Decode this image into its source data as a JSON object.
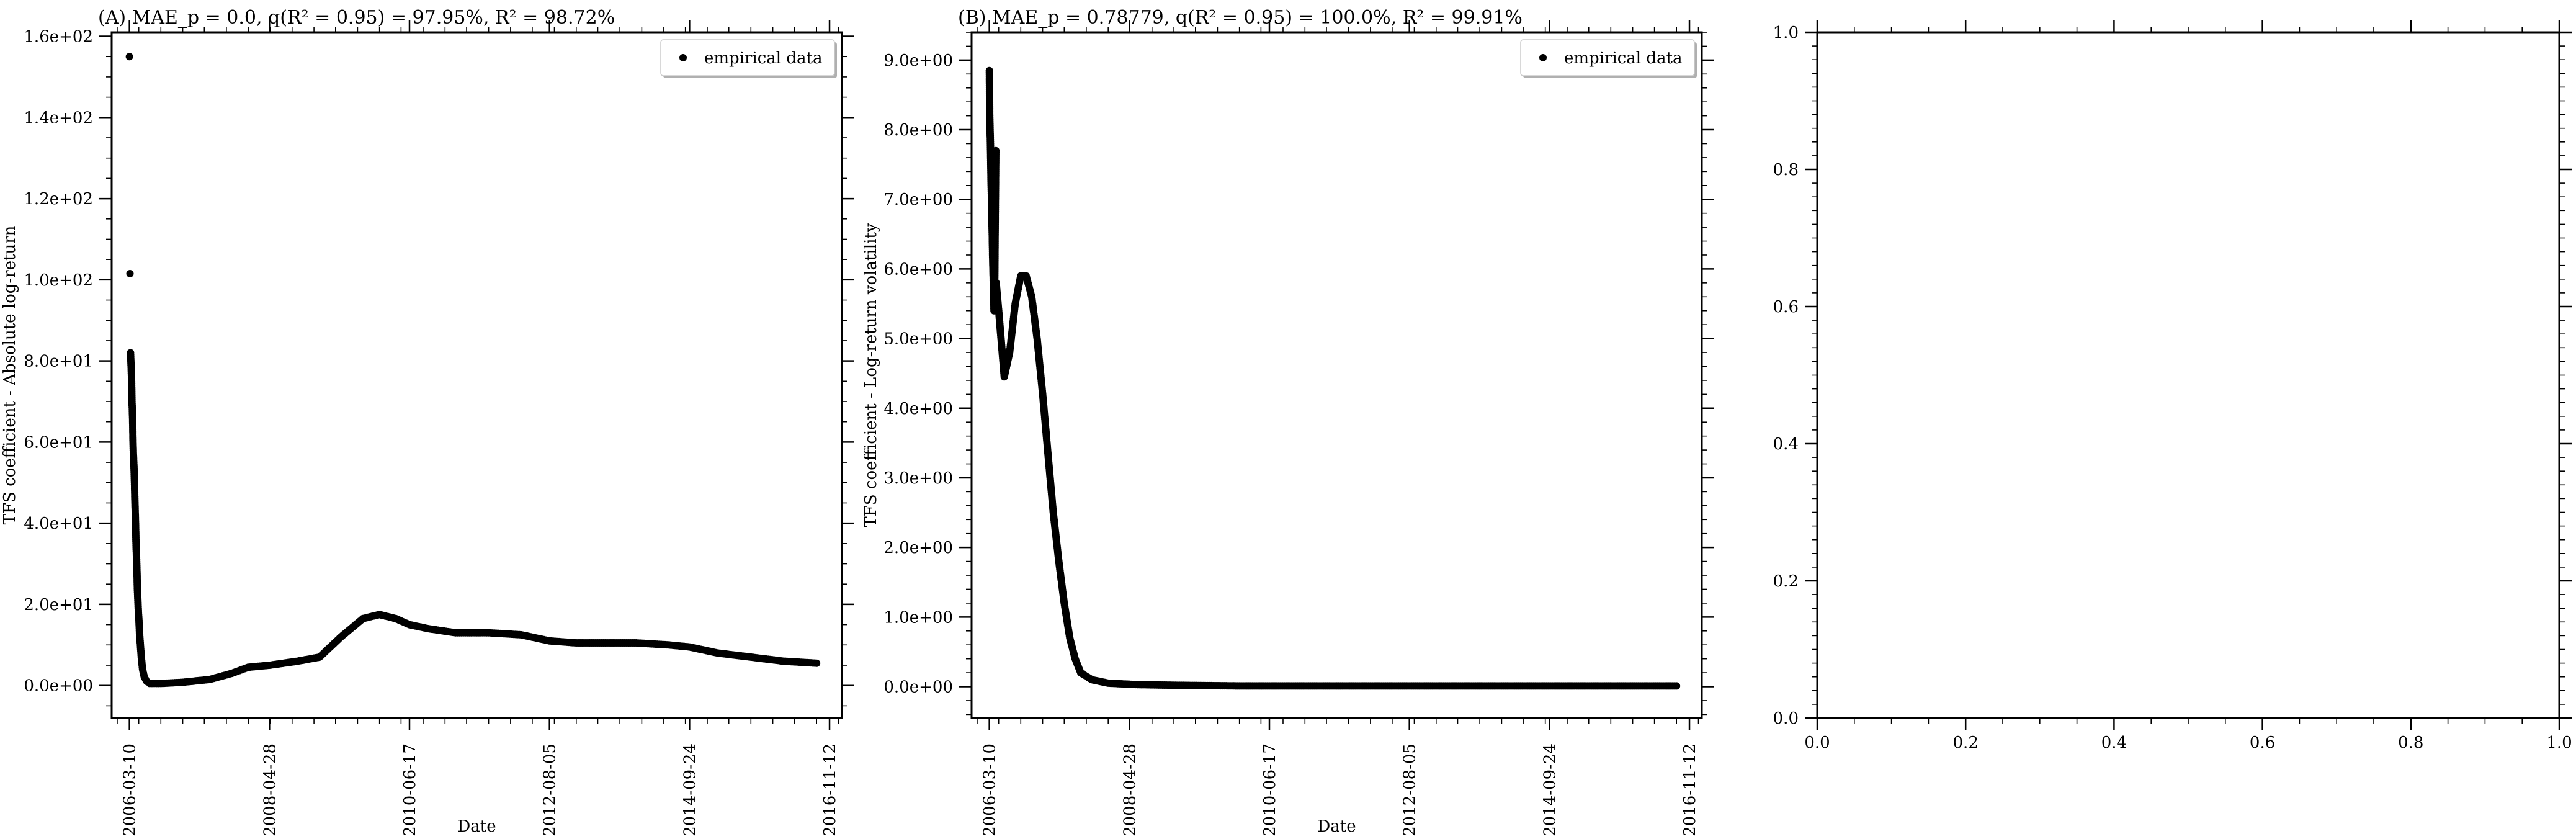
{
  "chart_data": [
    {
      "type": "scatter",
      "title": "(A) MAE_p = 0.0, q(R² = 0.95) = 97.95%, R² = 98.72%",
      "xlabel": "Date",
      "ylabel": "TFS coefficient - Absolute log-return",
      "x_ticks": [
        "2006-03-10",
        "2008-04-28",
        "2010-06-17",
        "2012-08-05",
        "2014-09-24",
        "2016-11-12"
      ],
      "y_ticks": [
        "0.0e+00",
        "2.0e+01",
        "4.0e+01",
        "6.0e+01",
        "8.0e+01",
        "1.0e+02",
        "1.2e+02",
        "1.4e+02",
        "1.6e+02"
      ],
      "xlim": [
        "2005-12-01",
        "2017-01-20"
      ],
      "ylim": [
        -8,
        161
      ],
      "legend": {
        "label": "empirical data",
        "placement": "top-right"
      },
      "series": [
        {
          "name": "empirical data",
          "marker": "dot",
          "points": [
            [
              "2006-03-10",
              155
            ],
            [
              "2006-03-13",
              101.5
            ],
            [
              "2006-03-16",
              82
            ],
            [
              "2006-03-18",
              80
            ],
            [
              "2006-03-20",
              78
            ],
            [
              "2006-03-22",
              75
            ],
            [
              "2006-03-24",
              70
            ],
            [
              "2006-03-26",
              68
            ],
            [
              "2006-03-28",
              65
            ],
            [
              "2006-03-30",
              60
            ],
            [
              "2006-04-01",
              57
            ],
            [
              "2006-04-03",
              55
            ],
            [
              "2006-04-05",
              53
            ],
            [
              "2006-04-07",
              50
            ],
            [
              "2006-04-09",
              46
            ],
            [
              "2006-04-11",
              43
            ],
            [
              "2006-04-13",
              40
            ],
            [
              "2006-04-15",
              36
            ],
            [
              "2006-04-17",
              33
            ],
            [
              "2006-04-19",
              31
            ],
            [
              "2006-04-21",
              28
            ],
            [
              "2006-04-23",
              24
            ],
            [
              "2006-04-25",
              22
            ],
            [
              "2006-04-27",
              20
            ],
            [
              "2006-04-29",
              18
            ],
            [
              "2006-05-02",
              16
            ],
            [
              "2006-05-05",
              13
            ],
            [
              "2006-05-10",
              10
            ],
            [
              "2006-05-15",
              7
            ],
            [
              "2006-05-22",
              4
            ],
            [
              "2006-06-01",
              2
            ],
            [
              "2006-06-15",
              1
            ],
            [
              "2006-07-01",
              0.5
            ],
            [
              "2006-09-01",
              0.5
            ],
            [
              "2007-01-01",
              0.8
            ],
            [
              "2007-06-01",
              1.5
            ],
            [
              "2007-10-01",
              3
            ],
            [
              "2008-01-01",
              4.5
            ],
            [
              "2008-04-28",
              5
            ],
            [
              "2008-10-01",
              6
            ],
            [
              "2009-02-01",
              7
            ],
            [
              "2009-06-01",
              12
            ],
            [
              "2009-10-01",
              16.5
            ],
            [
              "2010-01-01",
              17.5
            ],
            [
              "2010-04-01",
              16.5
            ],
            [
              "2010-06-17",
              15
            ],
            [
              "2010-10-01",
              14
            ],
            [
              "2011-03-01",
              13
            ],
            [
              "2011-09-01",
              13
            ],
            [
              "2012-03-01",
              12.5
            ],
            [
              "2012-08-05",
              11
            ],
            [
              "2013-01-01",
              10.5
            ],
            [
              "2013-06-01",
              10.5
            ],
            [
              "2013-12-01",
              10.5
            ],
            [
              "2014-06-01",
              10
            ],
            [
              "2014-09-24",
              9.5
            ],
            [
              "2015-03-01",
              8
            ],
            [
              "2015-09-01",
              7
            ],
            [
              "2016-03-01",
              6
            ],
            [
              "2016-09-01",
              5.5
            ]
          ]
        }
      ]
    },
    {
      "type": "scatter",
      "title": "(B) MAE_p = 0.78779, q(R² = 0.95) = 100.0%, R² = 99.91%",
      "xlabel": "Date",
      "ylabel": "TFS coefficient - Log-return volatility",
      "x_ticks": [
        "2006-03-10",
        "2008-04-28",
        "2010-06-17",
        "2012-08-05",
        "2014-09-24",
        "2016-11-12"
      ],
      "y_ticks": [
        "0.0e+00",
        "1.0e+00",
        "2.0e+00",
        "3.0e+00",
        "4.0e+00",
        "5.0e+00",
        "6.0e+00",
        "7.0e+00",
        "8.0e+00",
        "9.0e+00"
      ],
      "xlim": [
        "2005-12-01",
        "2017-01-20"
      ],
      "ylim": [
        -0.45,
        9.4
      ],
      "legend": {
        "label": "empirical data",
        "placement": "top-right"
      },
      "series": [
        {
          "name": "empirical data",
          "marker": "dot",
          "points": [
            [
              "2006-03-10",
              8.85
            ],
            [
              "2006-03-12",
              8.2
            ],
            [
              "2006-03-14",
              8.0
            ],
            [
              "2006-03-16",
              7.8
            ],
            [
              "2006-03-18",
              7.5
            ],
            [
              "2006-03-20",
              7.2
            ],
            [
              "2006-03-22",
              7.0
            ],
            [
              "2006-03-24",
              6.7
            ],
            [
              "2006-03-26",
              6.5
            ],
            [
              "2006-03-28",
              6.2
            ],
            [
              "2006-03-30",
              6.0
            ],
            [
              "2006-04-01",
              5.8
            ],
            [
              "2006-04-03",
              5.6
            ],
            [
              "2006-04-05",
              5.4
            ],
            [
              "2006-04-07",
              5.6
            ],
            [
              "2006-04-09",
              5.8
            ],
            [
              "2006-04-11",
              6.5
            ],
            [
              "2006-04-13",
              7.1
            ],
            [
              "2006-04-15",
              7.7
            ],
            [
              "2006-04-17",
              5.8
            ],
            [
              "2006-05-01",
              5.4
            ],
            [
              "2006-06-01",
              4.45
            ],
            [
              "2006-07-01",
              4.8
            ],
            [
              "2006-08-01",
              5.5
            ],
            [
              "2006-09-01",
              5.9
            ],
            [
              "2006-10-01",
              5.9
            ],
            [
              "2006-11-01",
              5.6
            ],
            [
              "2006-12-01",
              5.0
            ],
            [
              "2007-01-01",
              4.2
            ],
            [
              "2007-02-01",
              3.3
            ],
            [
              "2007-03-01",
              2.5
            ],
            [
              "2007-04-01",
              1.8
            ],
            [
              "2007-05-01",
              1.2
            ],
            [
              "2007-06-01",
              0.7
            ],
            [
              "2007-07-01",
              0.4
            ],
            [
              "2007-08-01",
              0.2
            ],
            [
              "2007-10-01",
              0.1
            ],
            [
              "2008-01-01",
              0.05
            ],
            [
              "2008-06-01",
              0.03
            ],
            [
              "2009-01-01",
              0.02
            ],
            [
              "2010-01-01",
              0.01
            ],
            [
              "2011-01-01",
              0.01
            ],
            [
              "2012-01-01",
              0.01
            ],
            [
              "2013-01-01",
              0.01
            ],
            [
              "2014-01-01",
              0.01
            ],
            [
              "2015-01-01",
              0.01
            ],
            [
              "2016-01-01",
              0.01
            ],
            [
              "2016-09-01",
              0.01
            ]
          ]
        }
      ]
    },
    {
      "type": "scatter",
      "title": "",
      "xlabel": "",
      "ylabel": "",
      "x_ticks": [
        "0.0",
        "0.2",
        "0.4",
        "0.6",
        "0.8",
        "1.0"
      ],
      "y_ticks": [
        "0.0",
        "0.2",
        "0.4",
        "0.6",
        "0.8",
        "1.0"
      ],
      "xlim": [
        0,
        1
      ],
      "ylim": [
        0,
        1
      ],
      "series": []
    }
  ]
}
